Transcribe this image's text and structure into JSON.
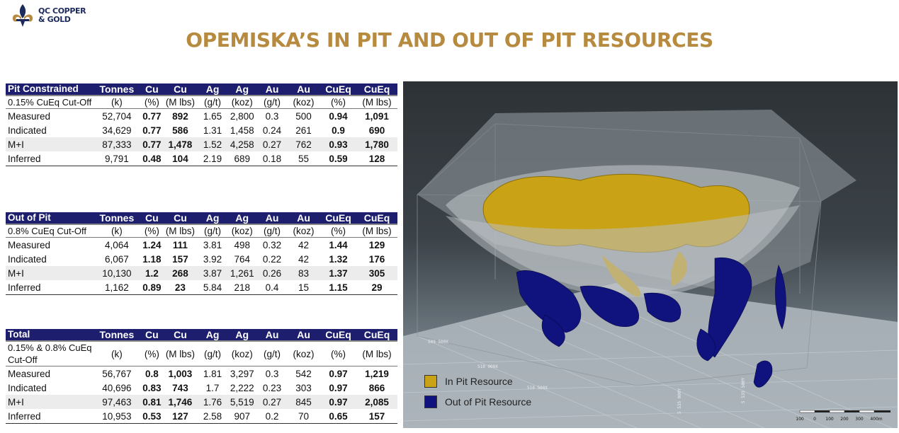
{
  "logo": {
    "line1": "QC COPPER",
    "line2": "& GOLD"
  },
  "title": "OPEMISKA’S IN PIT AND OUT OF PIT RESOURCES",
  "columns": [
    "Tonnes",
    "Cu",
    "Cu",
    "Ag",
    "Ag",
    "Au",
    "Au",
    "CuEq",
    "CuEq"
  ],
  "units": [
    "(k)",
    "(%)",
    "(M lbs)",
    "(g/t)",
    "(koz)",
    "(g/t)",
    "(koz)",
    "(%)",
    "(M lbs)"
  ],
  "bold_columns": [
    1,
    2,
    7,
    8
  ],
  "tables": [
    {
      "header": "Pit Constrained",
      "cutoff": "0.15% CuEq Cut-Off",
      "rows": [
        {
          "label": "Measured",
          "values": [
            "52,704",
            "0.77",
            "892",
            "1.65",
            "2,800",
            "0.3",
            "500",
            "0.94",
            "1,091"
          ]
        },
        {
          "label": "Indicated",
          "values": [
            "34,629",
            "0.77",
            "586",
            "1.31",
            "1,458",
            "0.24",
            "261",
            "0.9",
            "690"
          ]
        },
        {
          "label": "M+I",
          "values": [
            "87,333",
            "0.77",
            "1,478",
            "1.52",
            "4,258",
            "0.27",
            "762",
            "0.93",
            "1,780"
          ]
        },
        {
          "label": "Inferred",
          "values": [
            "9,791",
            "0.48",
            "104",
            "2.19",
            "689",
            "0.18",
            "55",
            "0.59",
            "128"
          ]
        }
      ]
    },
    {
      "header": "Out of Pit",
      "cutoff": "0.8% CuEq Cut-Off",
      "rows": [
        {
          "label": "Measured",
          "values": [
            "4,064",
            "1.24",
            "111",
            "3.81",
            "498",
            "0.32",
            "42",
            "1.44",
            "129"
          ]
        },
        {
          "label": "Indicated",
          "values": [
            "6,067",
            "1.18",
            "157",
            "3.92",
            "764",
            "0.22",
            "42",
            "1.32",
            "176"
          ]
        },
        {
          "label": "M+I",
          "values": [
            "10,130",
            "1.2",
            "268",
            "3.87",
            "1,261",
            "0.26",
            "83",
            "1.37",
            "305"
          ]
        },
        {
          "label": "Inferred",
          "values": [
            "1,162",
            "0.89",
            "23",
            "5.84",
            "218",
            "0.4",
            "15",
            "1.15",
            "29"
          ]
        }
      ]
    },
    {
      "header": "Total",
      "cutoff": "0.15% & 0.8% CuEq Cut-Off",
      "rows": [
        {
          "label": "Measured",
          "values": [
            "56,767",
            "0.8",
            "1,003",
            "1.81",
            "3,297",
            "0.3",
            "542",
            "0.97",
            "1,219"
          ]
        },
        {
          "label": "Indicated",
          "values": [
            "40,696",
            "0.83",
            "743",
            "1.7",
            "2,222",
            "0.23",
            "303",
            "0.97",
            "866"
          ]
        },
        {
          "label": "M+I",
          "values": [
            "97,463",
            "0.81",
            "1,746",
            "1.76",
            "5,519",
            "0.27",
            "845",
            "0.97",
            "2,085"
          ]
        },
        {
          "label": "Inferred",
          "values": [
            "10,953",
            "0.53",
            "127",
            "2.58",
            "907",
            "0.2",
            "70",
            "0.65",
            "157"
          ]
        }
      ]
    }
  ],
  "viz": {
    "colors": {
      "in_pit": "#c9a315",
      "out_pit": "#10127e",
      "sky": "#3a4147"
    },
    "legend": [
      {
        "label": "In Pit Resource",
        "color": "#c9a315"
      },
      {
        "label": "Out of Pit Resource",
        "color": "#10127e"
      }
    ],
    "grid_labels": [
      "509 500X",
      "510 000X",
      "510 500X",
      "5 535 000Y",
      "5 535 500Y"
    ],
    "scale_labels": [
      "100",
      "0",
      "100",
      "200",
      "300",
      "400m"
    ]
  }
}
